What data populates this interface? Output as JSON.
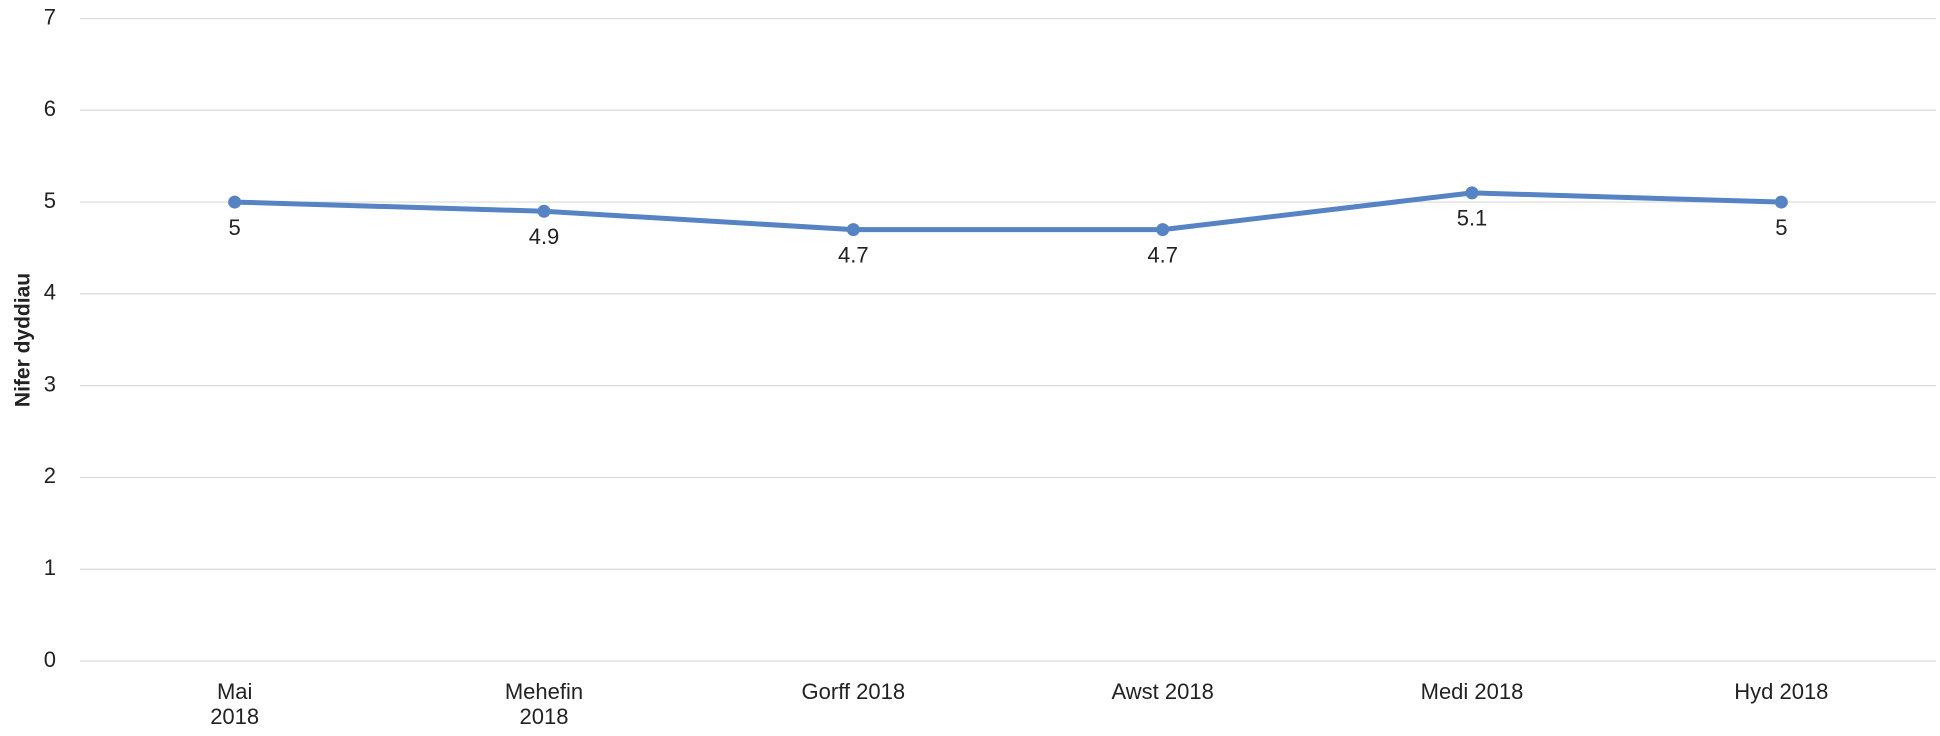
{
  "chart_data": {
    "type": "line",
    "y_label": "Nifer dyddiau",
    "categories": [
      "Mai\n2018",
      "Mehefin\n2018",
      "Gorff 2018",
      "Awst 2018",
      "Medi 2018",
      "Hyd 2018"
    ],
    "series": [
      {
        "name": "Nifer dyddiau",
        "color": "#5683c3",
        "values": [
          5,
          4.9,
          4.7,
          4.7,
          5.1,
          5
        ]
      }
    ],
    "ylim": [
      0,
      7
    ],
    "yticks": [
      0,
      1,
      2,
      3,
      4,
      5,
      6,
      7
    ],
    "grid": true,
    "legend": false
  }
}
